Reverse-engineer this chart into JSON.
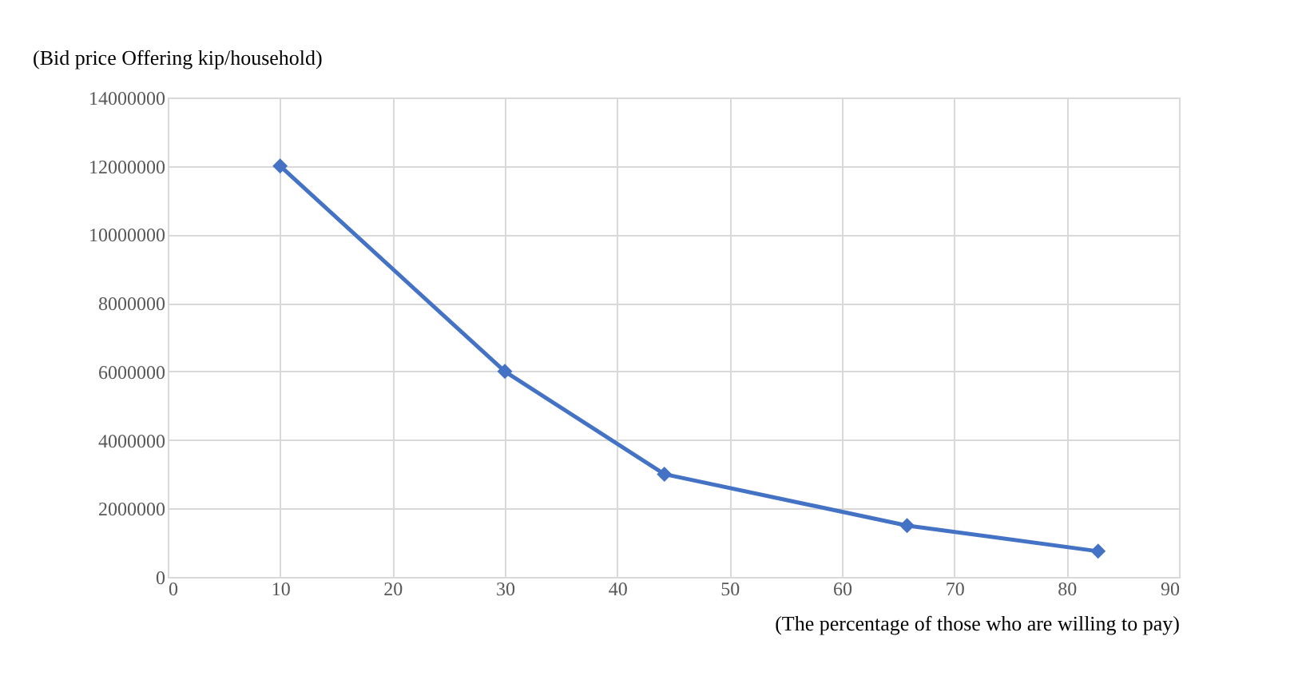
{
  "chart_data": {
    "type": "line",
    "ylabel": "(Bid price Offering kip/household)",
    "xlabel": "(The percentage of those who are willing  to pay)",
    "x": [
      10,
      30,
      44.2,
      65.8,
      82.8
    ],
    "series": [
      {
        "color": "#4472c4",
        "values": [
          12000000,
          6000000,
          3000000,
          1500000,
          750000
        ]
      }
    ],
    "xlim": [
      0,
      90
    ],
    "xticks": [
      0,
      10,
      20,
      30,
      40,
      50,
      60,
      70,
      80,
      90
    ],
    "ylim": [
      0,
      14000000
    ],
    "yticks": [
      0,
      2000000,
      4000000,
      6000000,
      8000000,
      10000000,
      12000000,
      14000000
    ],
    "grid": true,
    "marker": "diamond",
    "line_style": "solid",
    "legend": false
  }
}
